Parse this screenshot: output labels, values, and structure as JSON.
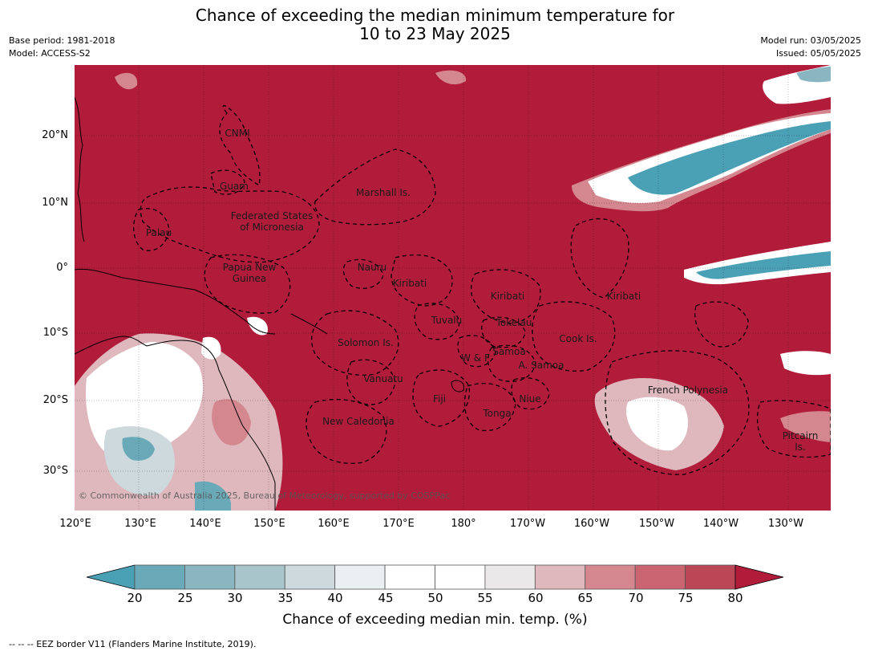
{
  "title": {
    "line1": "Chance of exceeding the median minimum temperature for",
    "line2": "10 to 23 May 2025"
  },
  "meta": {
    "base_period": "Base period: 1981-2018",
    "model": "Model: ACCESS-S2",
    "model_run": "Model run: 03/05/2025",
    "issued": "Issued: 05/05/2025"
  },
  "map": {
    "lat_ticks": [
      "20°N",
      "10°N",
      "0°",
      "10°S",
      "20°S",
      "30°S"
    ],
    "lon_ticks": [
      "120°E",
      "130°E",
      "140°E",
      "150°E",
      "160°E",
      "170°E",
      "180°",
      "170°W",
      "160°W",
      "150°W",
      "140°W",
      "130°W"
    ],
    "regions": [
      {
        "name": "CNMI"
      },
      {
        "name": "Guam"
      },
      {
        "name": "Marshall Is."
      },
      {
        "name": "Federated States"
      },
      {
        "name": "of Micronesia"
      },
      {
        "name": "Palau"
      },
      {
        "name": "Papua New"
      },
      {
        "name": "Guinea"
      },
      {
        "name": "Nauru"
      },
      {
        "name": "Kiribati"
      },
      {
        "name": "Kiribati"
      },
      {
        "name": "Kiribati"
      },
      {
        "name": "Tuvalu"
      },
      {
        "name": "Tokelau"
      },
      {
        "name": "Cook Is."
      },
      {
        "name": "Solomon Is."
      },
      {
        "name": "W & F"
      },
      {
        "name": "Samoa"
      },
      {
        "name": "A. Samoa"
      },
      {
        "name": "Vanuatu"
      },
      {
        "name": "Fiji"
      },
      {
        "name": "Niue"
      },
      {
        "name": "Tonga"
      },
      {
        "name": "New Caledonia"
      },
      {
        "name": "French Polynesia"
      },
      {
        "name": "Pitcairn"
      },
      {
        "name": "Is."
      }
    ],
    "copyright": "© Commonwealth of Australia 2025, Bureau of Meteorology, supported by COSPPac"
  },
  "colorbar": {
    "ticks": [
      "20",
      "25",
      "30",
      "35",
      "40",
      "45",
      "50",
      "55",
      "60",
      "65",
      "70",
      "75",
      "80"
    ],
    "colors": [
      "#4aa0b5",
      "#6aa9b8",
      "#8ab6c1",
      "#a8c5cb",
      "#cdd9dc",
      "#eaf0f1",
      "#ffffff",
      "#ffffff",
      "#ebe8e9",
      "#deb8bd",
      "#d4878f",
      "#c96470",
      "#bb4656",
      "#b01c3a"
    ],
    "label": "Chance of exceeding median min. temp. (%)"
  },
  "footnote": "--  --  -- EEZ border V11 (Flanders Marine Institute, 2019).",
  "colors": {
    "high_red": "#b01c3a",
    "low_teal": "#4aa0b5",
    "land_line": "#000000"
  }
}
